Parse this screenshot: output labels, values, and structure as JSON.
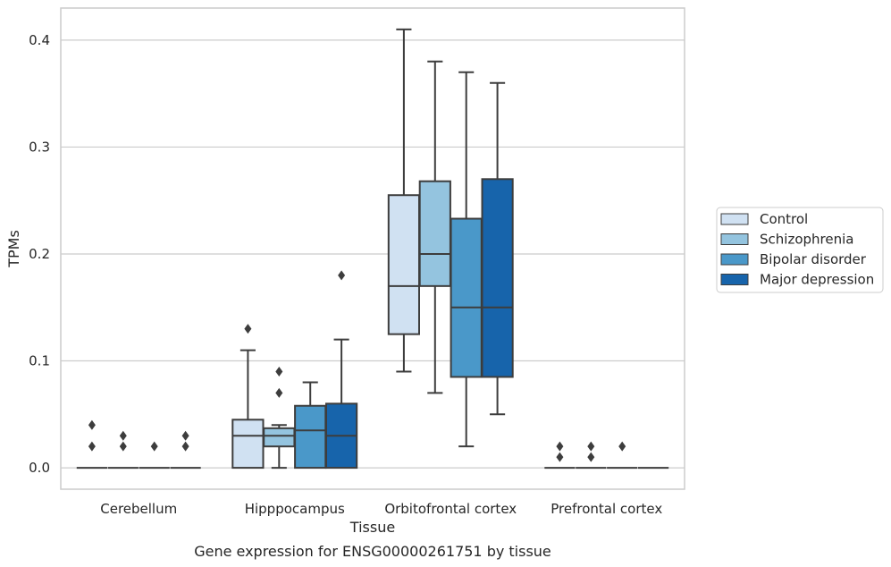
{
  "chart_data": {
    "type": "boxplot",
    "caption": "Gene expression for ENSG00000261751 by tissue",
    "xlabel": "Tissue",
    "ylabel": "TPMs",
    "ylim": [
      -0.02,
      0.43
    ],
    "yticks": [
      0.0,
      0.1,
      0.2,
      0.3,
      0.4
    ],
    "ytick_labels": [
      "0.0",
      "0.1",
      "0.2",
      "0.3",
      "0.4"
    ],
    "grid": "horizontal",
    "legend_position": "right",
    "categories": [
      "Cerebellum",
      "Hipppocampus",
      "Orbitofrontal cortex",
      "Prefrontal cortex"
    ],
    "series": [
      {
        "name": "Control",
        "color": "#d0e1f2",
        "boxes": [
          {
            "whislo": 0.0,
            "q1": 0.0,
            "med": 0.0,
            "q3": 0.0,
            "whishi": 0.0,
            "fliers": [
              0.02,
              0.04
            ]
          },
          {
            "whislo": 0.0,
            "q1": 0.0,
            "med": 0.03,
            "q3": 0.045,
            "whishi": 0.11,
            "fliers": [
              0.13
            ]
          },
          {
            "whislo": 0.09,
            "q1": 0.125,
            "med": 0.17,
            "q3": 0.255,
            "whishi": 0.41,
            "fliers": []
          },
          {
            "whislo": 0.0,
            "q1": 0.0,
            "med": 0.0,
            "q3": 0.0,
            "whishi": 0.0,
            "fliers": [
              0.01,
              0.02
            ]
          }
        ]
      },
      {
        "name": "Schizophrenia",
        "color": "#94c4df",
        "boxes": [
          {
            "whislo": 0.0,
            "q1": 0.0,
            "med": 0.0,
            "q3": 0.0,
            "whishi": 0.0,
            "fliers": [
              0.02,
              0.03
            ]
          },
          {
            "whislo": 0.0,
            "q1": 0.02,
            "med": 0.03,
            "q3": 0.037,
            "whishi": 0.04,
            "fliers": [
              0.07,
              0.09
            ]
          },
          {
            "whislo": 0.07,
            "q1": 0.17,
            "med": 0.2,
            "q3": 0.268,
            "whishi": 0.38,
            "fliers": []
          },
          {
            "whislo": 0.0,
            "q1": 0.0,
            "med": 0.0,
            "q3": 0.0,
            "whishi": 0.0,
            "fliers": [
              0.01,
              0.02
            ]
          }
        ]
      },
      {
        "name": "Bipolar disorder",
        "color": "#4a98c9",
        "boxes": [
          {
            "whislo": 0.0,
            "q1": 0.0,
            "med": 0.0,
            "q3": 0.0,
            "whishi": 0.0,
            "fliers": [
              0.02
            ]
          },
          {
            "whislo": 0.0,
            "q1": 0.0,
            "med": 0.035,
            "q3": 0.058,
            "whishi": 0.08,
            "fliers": []
          },
          {
            "whislo": 0.02,
            "q1": 0.085,
            "med": 0.15,
            "q3": 0.233,
            "whishi": 0.37,
            "fliers": []
          },
          {
            "whislo": 0.0,
            "q1": 0.0,
            "med": 0.0,
            "q3": 0.0,
            "whishi": 0.0,
            "fliers": [
              0.02
            ]
          }
        ]
      },
      {
        "name": "Major depression",
        "color": "#1764ab",
        "boxes": [
          {
            "whislo": 0.0,
            "q1": 0.0,
            "med": 0.0,
            "q3": 0.0,
            "whishi": 0.0,
            "fliers": [
              0.02,
              0.03
            ]
          },
          {
            "whislo": 0.0,
            "q1": 0.0,
            "med": 0.03,
            "q3": 0.06,
            "whishi": 0.12,
            "fliers": [
              0.18
            ]
          },
          {
            "whislo": 0.05,
            "q1": 0.085,
            "med": 0.15,
            "q3": 0.27,
            "whishi": 0.36,
            "fliers": []
          },
          {
            "whislo": 0.0,
            "q1": 0.0,
            "med": 0.0,
            "q3": 0.0,
            "whishi": 0.0,
            "fliers": []
          }
        ]
      }
    ]
  }
}
